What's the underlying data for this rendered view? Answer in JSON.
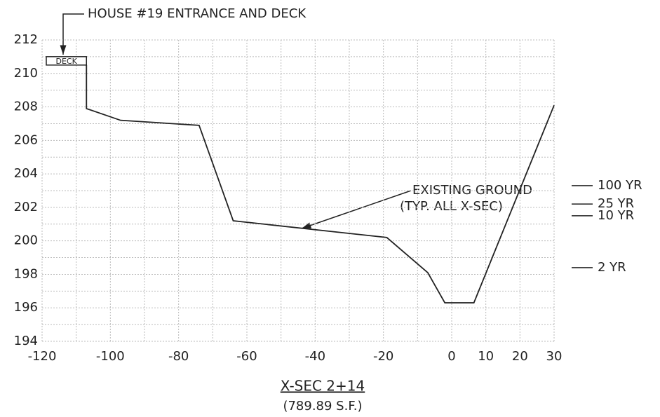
{
  "chart_data": {
    "type": "line",
    "title": "X-SEC 2+14",
    "subtitle": "(789.89 S.F.)",
    "annotations": [
      "HOUSE #19 ENTRANCE AND DECK",
      "DECK",
      "EXISTING GROUND",
      "(TYP. ALL X-SEC)"
    ],
    "series": [
      {
        "name": "EXISTING GROUND",
        "color": "#222222",
        "x": [
          -107,
          -107,
          -97,
          -74,
          -64,
          -19,
          -7,
          -2,
          6.5,
          30
        ],
        "values": [
          210.5,
          207.9,
          207.2,
          206.9,
          201.2,
          200.2,
          198.1,
          196.3,
          196.3,
          208.1
        ]
      }
    ],
    "levels": [
      {
        "label": "100 YR",
        "value": 203.3
      },
      {
        "label": "25 YR",
        "value": 202.2
      },
      {
        "label": "10 YR",
        "value": 201.5
      },
      {
        "label": "2 YR",
        "value": 198.4
      }
    ],
    "xlim": [
      -120,
      30
    ],
    "ylim": [
      194,
      212
    ],
    "xticks": [
      -120,
      -100,
      -80,
      -60,
      -40,
      -20,
      0,
      10,
      20,
      30
    ],
    "yticks": [
      194,
      196,
      198,
      200,
      202,
      204,
      206,
      208,
      210,
      212
    ],
    "xminor_ticks": [
      -110,
      -90,
      -70,
      -50,
      -30,
      -10
    ],
    "yminor_ticks": [
      195,
      197,
      199,
      201,
      203,
      205,
      207,
      209,
      211
    ],
    "grid": true
  }
}
